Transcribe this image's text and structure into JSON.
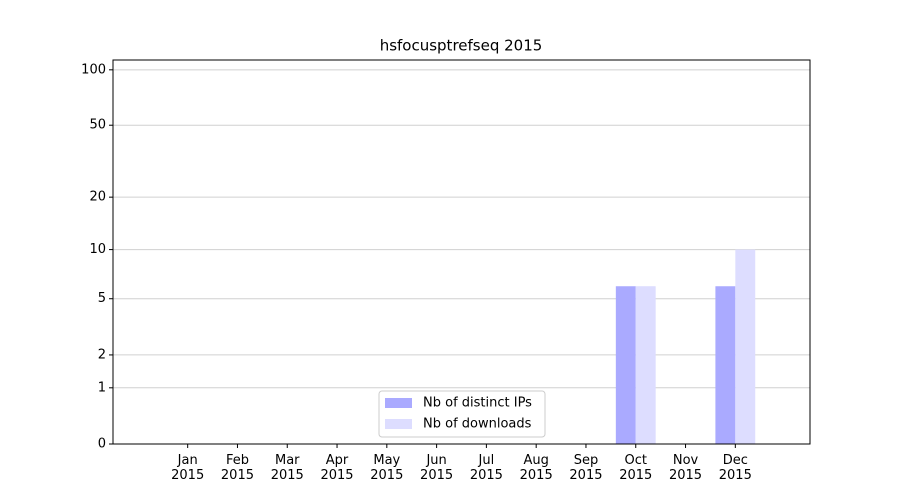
{
  "chart_data": {
    "type": "bar",
    "title": "hsfocusptrefseq 2015",
    "categories": [
      "Jan\n2015",
      "Feb\n2015",
      "Mar\n2015",
      "Apr\n2015",
      "May\n2015",
      "Jun\n2015",
      "Jul\n2015",
      "Aug\n2015",
      "Sep\n2015",
      "Oct\n2015",
      "Nov\n2015",
      "Dec\n2015"
    ],
    "series": [
      {
        "name": "Nb of distinct IPs",
        "color": "#aaaaff",
        "values": [
          0,
          0,
          0,
          0,
          0,
          0,
          0,
          0,
          0,
          6,
          0,
          6
        ]
      },
      {
        "name": "Nb of downloads",
        "color": "#ddddff",
        "values": [
          0,
          0,
          0,
          0,
          0,
          0,
          0,
          0,
          0,
          6,
          0,
          10
        ]
      }
    ],
    "yscale": "log1p",
    "ylim": [
      0,
      113
    ],
    "yticks": [
      0,
      1,
      2,
      5,
      10,
      20,
      50,
      100
    ],
    "grid": true,
    "legend": "lower center"
  }
}
